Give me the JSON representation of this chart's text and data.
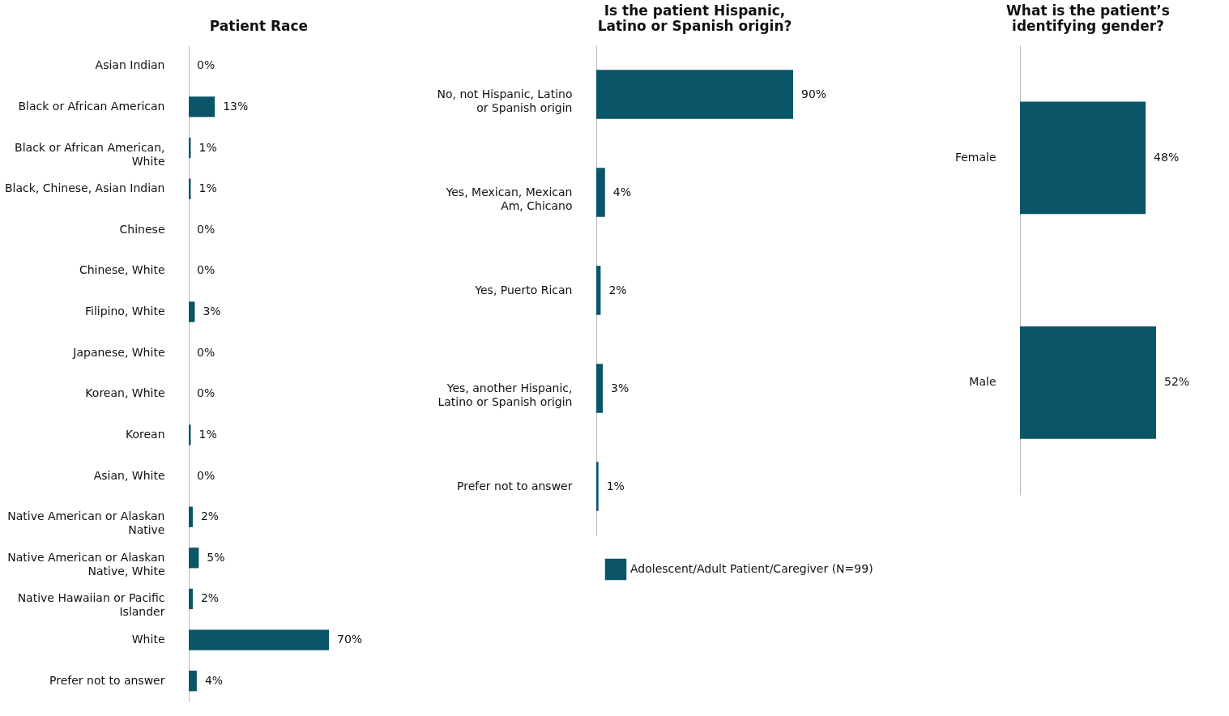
{
  "chart_data": [
    {
      "type": "bar",
      "orientation": "horizontal",
      "title": "Patient Race",
      "categories": [
        "Asian Indian",
        "Black or African American",
        "Black or African American, White",
        "Black, Chinese, Asian Indian",
        "Chinese",
        "Chinese, White",
        "Filipino, White",
        "Japanese, White",
        "Korean, White",
        "Korean",
        "Asian, White",
        "Native American or Alaskan Native",
        "Native American or Alaskan Native, White",
        "Native Hawaiian or Pacific Islander",
        "White",
        "Prefer not to answer"
      ],
      "series": [
        {
          "color": "#0a5568",
          "values": [
            0,
            13,
            1,
            1,
            0,
            0,
            3,
            0,
            0,
            1,
            0,
            2,
            5,
            2,
            70,
            4
          ],
          "value_labels": [
            "0%",
            "13%",
            "1%",
            "1%",
            "0%",
            "0%",
            "3%",
            "0%",
            "0%",
            "1%",
            "0%",
            "2%",
            "5%",
            "2%",
            "70%",
            "4%"
          ]
        }
      ],
      "legend": false
    },
    {
      "type": "bar",
      "orientation": "horizontal",
      "title": "Is the patient Hispanic, Latino or Spanish origin?",
      "categories": [
        "No, not Hispanic, Latino or Spanish origin",
        "Yes, Mexican, Mexican Am, Chicano",
        "Yes, Puerto Rican",
        "Yes, another Hispanic, Latino or Spanish origin",
        "Prefer not to answer"
      ],
      "series": [
        {
          "name": "Adolescent/Adult Patient/Caregiver (N=99)",
          "color": "#0a5568",
          "values": [
            90,
            4,
            2,
            3,
            1
          ],
          "value_labels": [
            "90%",
            "4%",
            "2%",
            "3%",
            "1%"
          ]
        }
      ],
      "legend": "bottom"
    },
    {
      "type": "bar",
      "orientation": "horizontal",
      "title": "What is the patient’s identifying gender?",
      "categories": [
        "Female",
        "Male"
      ],
      "series": [
        {
          "color": "#0a5568",
          "values": [
            48,
            52
          ],
          "value_labels": [
            "48%",
            "52%"
          ]
        }
      ],
      "legend": false
    }
  ]
}
